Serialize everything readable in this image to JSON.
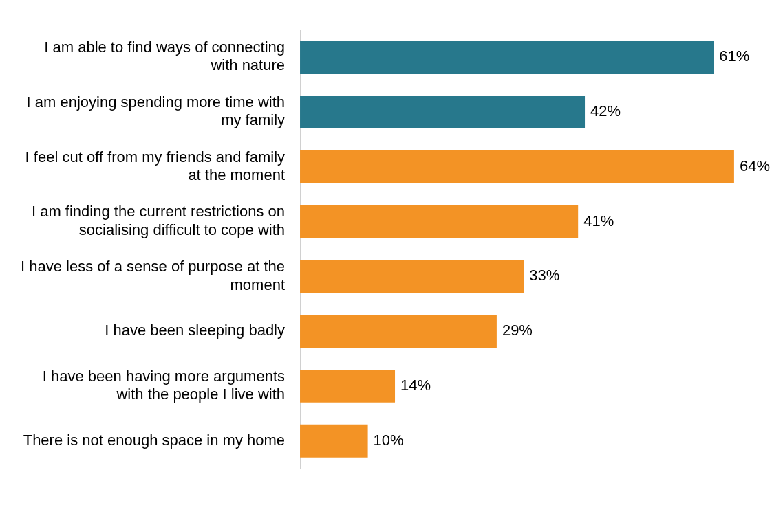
{
  "chart_data": {
    "type": "bar",
    "orientation": "horizontal",
    "categories": [
      "I am able to find ways of connecting with nature",
      "I am enjoying spending more time with my family",
      "I feel cut off from my friends and family at the moment",
      "I am finding the current restrictions on socialising difficult to cope with",
      "I have less of a sense of purpose at the moment",
      "I have been sleeping badly",
      "I have been having more arguments with the people I live with",
      "There is not enough space in my home"
    ],
    "values": [
      61,
      42,
      64,
      41,
      33,
      29,
      14,
      10
    ],
    "value_labels": [
      "61%",
      "42%",
      "64%",
      "41%",
      "33%",
      "29%",
      "14%",
      "10%"
    ],
    "colors": [
      "#27788c",
      "#27788c",
      "#f39325",
      "#f39325",
      "#f39325",
      "#f39325",
      "#f39325",
      "#f39325"
    ]
  }
}
